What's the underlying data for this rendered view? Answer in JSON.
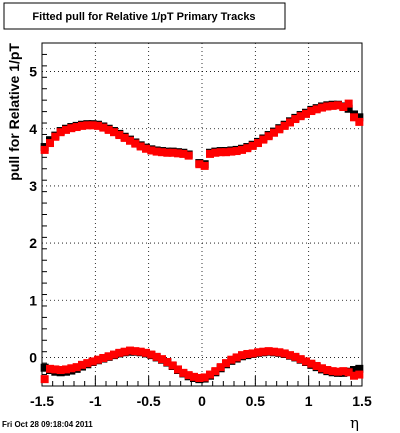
{
  "chart_data": {
    "type": "scatter",
    "title": "Fitted pull for Relative 1/pT  Primary Tracks",
    "xlabel": "η",
    "ylabel": "pull for Relative 1/pT",
    "xlim": [
      -1.5,
      1.5
    ],
    "ylim": [
      -0.5,
      5.5
    ],
    "x_tick_labels": [
      "-1.5",
      "-1",
      "-0.5",
      "0",
      "0.5",
      "1",
      "1.5"
    ],
    "x_ticks": [
      -1.5,
      -1,
      -0.5,
      0,
      0.5,
      1,
      1.5
    ],
    "y_tick_labels": [
      "0",
      "1",
      "2",
      "3",
      "4",
      "5"
    ],
    "y_ticks": [
      0,
      1,
      2,
      3,
      4,
      5
    ],
    "grid": true,
    "series": [
      {
        "color": "#000000",
        "marker": "square",
        "points": [
          [
            -1.475,
            3.68
          ],
          [
            -1.425,
            3.8
          ],
          [
            -1.375,
            3.88
          ],
          [
            -1.325,
            3.96
          ],
          [
            -1.275,
            4.0
          ],
          [
            -1.225,
            4.03
          ],
          [
            -1.175,
            4.05
          ],
          [
            -1.125,
            4.07
          ],
          [
            -1.075,
            4.08
          ],
          [
            -1.025,
            4.08
          ],
          [
            -0.975,
            4.07
          ],
          [
            -0.925,
            4.04
          ],
          [
            -0.875,
            4.0
          ],
          [
            -0.825,
            3.96
          ],
          [
            -0.775,
            3.91
          ],
          [
            -0.725,
            3.86
          ],
          [
            -0.675,
            3.81
          ],
          [
            -0.625,
            3.76
          ],
          [
            -0.575,
            3.71
          ],
          [
            -0.525,
            3.67
          ],
          [
            -0.475,
            3.64
          ],
          [
            -0.425,
            3.62
          ],
          [
            -0.375,
            3.61
          ],
          [
            -0.325,
            3.6
          ],
          [
            -0.275,
            3.6
          ],
          [
            -0.225,
            3.59
          ],
          [
            -0.175,
            3.58
          ],
          [
            -0.125,
            3.55
          ],
          [
            -0.025,
            3.4
          ],
          [
            0.025,
            3.38
          ],
          [
            0.075,
            3.58
          ],
          [
            0.125,
            3.6
          ],
          [
            0.175,
            3.61
          ],
          [
            0.225,
            3.61
          ],
          [
            0.275,
            3.62
          ],
          [
            0.325,
            3.63
          ],
          [
            0.375,
            3.65
          ],
          [
            0.425,
            3.68
          ],
          [
            0.475,
            3.72
          ],
          [
            0.525,
            3.77
          ],
          [
            0.575,
            3.83
          ],
          [
            0.625,
            3.89
          ],
          [
            0.675,
            3.95
          ],
          [
            0.725,
            4.01
          ],
          [
            0.775,
            4.07
          ],
          [
            0.825,
            4.13
          ],
          [
            0.875,
            4.19
          ],
          [
            0.925,
            4.24
          ],
          [
            0.975,
            4.28
          ],
          [
            1.025,
            4.33
          ],
          [
            1.075,
            4.36
          ],
          [
            1.125,
            4.39
          ],
          [
            1.175,
            4.41
          ],
          [
            1.225,
            4.42
          ],
          [
            1.275,
            4.42
          ],
          [
            1.325,
            4.39
          ],
          [
            1.375,
            4.35
          ],
          [
            1.425,
            4.25
          ],
          [
            1.475,
            4.2
          ],
          [
            -1.475,
            -0.18
          ],
          [
            -1.425,
            -0.22
          ],
          [
            -1.375,
            -0.25
          ],
          [
            -1.325,
            -0.26
          ],
          [
            -1.275,
            -0.25
          ],
          [
            -1.225,
            -0.23
          ],
          [
            -1.175,
            -0.2
          ],
          [
            -1.125,
            -0.16
          ],
          [
            -1.075,
            -0.12
          ],
          [
            -1.025,
            -0.08
          ],
          [
            -0.975,
            -0.05
          ],
          [
            -0.925,
            -0.02
          ],
          [
            -0.875,
            0.01
          ],
          [
            -0.825,
            0.04
          ],
          [
            -0.775,
            0.07
          ],
          [
            -0.725,
            0.09
          ],
          [
            -0.675,
            0.1
          ],
          [
            -0.625,
            0.1
          ],
          [
            -0.575,
            0.09
          ],
          [
            -0.525,
            0.07
          ],
          [
            -0.475,
            0.04
          ],
          [
            -0.425,
            0.0
          ],
          [
            -0.375,
            -0.04
          ],
          [
            -0.325,
            -0.09
          ],
          [
            -0.275,
            -0.15
          ],
          [
            -0.225,
            -0.22
          ],
          [
            -0.175,
            -0.28
          ],
          [
            -0.125,
            -0.33
          ],
          [
            -0.075,
            -0.36
          ],
          [
            -0.025,
            -0.38
          ],
          [
            0.025,
            -0.37
          ],
          [
            0.075,
            -0.32
          ],
          [
            0.125,
            -0.26
          ],
          [
            0.175,
            -0.19
          ],
          [
            0.225,
            -0.12
          ],
          [
            0.275,
            -0.06
          ],
          [
            0.325,
            -0.02
          ],
          [
            0.375,
            0.02
          ],
          [
            0.425,
            0.04
          ],
          [
            0.475,
            0.06
          ],
          [
            0.525,
            0.08
          ],
          [
            0.575,
            0.09
          ],
          [
            0.625,
            0.1
          ],
          [
            0.675,
            0.09
          ],
          [
            0.725,
            0.08
          ],
          [
            0.775,
            0.06
          ],
          [
            0.825,
            0.03
          ],
          [
            0.875,
            0.0
          ],
          [
            0.925,
            -0.04
          ],
          [
            0.975,
            -0.08
          ],
          [
            1.025,
            -0.13
          ],
          [
            1.075,
            -0.17
          ],
          [
            1.125,
            -0.21
          ],
          [
            1.175,
            -0.24
          ],
          [
            1.225,
            -0.26
          ],
          [
            1.275,
            -0.27
          ],
          [
            1.325,
            -0.27
          ],
          [
            1.375,
            -0.25
          ],
          [
            1.425,
            -0.22
          ],
          [
            1.475,
            -0.2
          ]
        ]
      },
      {
        "color": "#ff0000",
        "marker": "square",
        "points": [
          [
            -1.475,
            3.63
          ],
          [
            -1.425,
            3.75
          ],
          [
            -1.375,
            3.86
          ],
          [
            -1.325,
            3.94
          ],
          [
            -1.275,
            3.98
          ],
          [
            -1.225,
            4.01
          ],
          [
            -1.175,
            4.03
          ],
          [
            -1.125,
            4.05
          ],
          [
            -1.075,
            4.06
          ],
          [
            -1.025,
            4.06
          ],
          [
            -0.975,
            4.05
          ],
          [
            -0.925,
            4.02
          ],
          [
            -0.875,
            3.98
          ],
          [
            -0.825,
            3.94
          ],
          [
            -0.775,
            3.89
          ],
          [
            -0.725,
            3.84
          ],
          [
            -0.675,
            3.79
          ],
          [
            -0.625,
            3.74
          ],
          [
            -0.575,
            3.69
          ],
          [
            -0.525,
            3.65
          ],
          [
            -0.475,
            3.62
          ],
          [
            -0.425,
            3.6
          ],
          [
            -0.375,
            3.59
          ],
          [
            -0.325,
            3.58
          ],
          [
            -0.275,
            3.58
          ],
          [
            -0.225,
            3.57
          ],
          [
            -0.175,
            3.56
          ],
          [
            -0.125,
            3.53
          ],
          [
            -0.025,
            3.38
          ],
          [
            0.025,
            3.35
          ],
          [
            0.075,
            3.56
          ],
          [
            0.125,
            3.58
          ],
          [
            0.175,
            3.59
          ],
          [
            0.225,
            3.59
          ],
          [
            0.275,
            3.6
          ],
          [
            0.325,
            3.61
          ],
          [
            0.375,
            3.63
          ],
          [
            0.425,
            3.66
          ],
          [
            0.475,
            3.7
          ],
          [
            0.525,
            3.75
          ],
          [
            0.575,
            3.81
          ],
          [
            0.625,
            3.87
          ],
          [
            0.675,
            3.93
          ],
          [
            0.725,
            3.99
          ],
          [
            0.775,
            4.05
          ],
          [
            0.825,
            4.11
          ],
          [
            0.875,
            4.17
          ],
          [
            0.925,
            4.22
          ],
          [
            0.975,
            4.26
          ],
          [
            1.025,
            4.31
          ],
          [
            1.075,
            4.34
          ],
          [
            1.125,
            4.37
          ],
          [
            1.175,
            4.39
          ],
          [
            1.225,
            4.4
          ],
          [
            1.275,
            4.41
          ],
          [
            1.325,
            4.38
          ],
          [
            1.375,
            4.44
          ],
          [
            1.425,
            4.2
          ],
          [
            1.475,
            4.12
          ],
          [
            -1.475,
            -0.38
          ],
          [
            -1.425,
            -0.2
          ],
          [
            -1.375,
            -0.21
          ],
          [
            -1.325,
            -0.22
          ],
          [
            -1.275,
            -0.21
          ],
          [
            -1.225,
            -0.19
          ],
          [
            -1.175,
            -0.17
          ],
          [
            -1.125,
            -0.13
          ],
          [
            -1.075,
            -0.1
          ],
          [
            -1.025,
            -0.07
          ],
          [
            -0.975,
            -0.04
          ],
          [
            -0.925,
            -0.01
          ],
          [
            -0.875,
            0.02
          ],
          [
            -0.825,
            0.05
          ],
          [
            -0.775,
            0.08
          ],
          [
            -0.725,
            0.1
          ],
          [
            -0.675,
            0.12
          ],
          [
            -0.625,
            0.11
          ],
          [
            -0.575,
            0.1
          ],
          [
            -0.525,
            0.08
          ],
          [
            -0.475,
            0.05
          ],
          [
            -0.425,
            0.01
          ],
          [
            -0.375,
            -0.03
          ],
          [
            -0.325,
            -0.08
          ],
          [
            -0.275,
            -0.14
          ],
          [
            -0.225,
            -0.21
          ],
          [
            -0.175,
            -0.27
          ],
          [
            -0.125,
            -0.31
          ],
          [
            -0.075,
            -0.34
          ],
          [
            -0.025,
            -0.36
          ],
          [
            0.025,
            -0.35
          ],
          [
            0.075,
            -0.3
          ],
          [
            0.125,
            -0.24
          ],
          [
            0.175,
            -0.17
          ],
          [
            0.225,
            -0.1
          ],
          [
            0.275,
            -0.04
          ],
          [
            0.325,
            0.0
          ],
          [
            0.375,
            0.04
          ],
          [
            0.425,
            0.06
          ],
          [
            0.475,
            0.07
          ],
          [
            0.525,
            0.09
          ],
          [
            0.575,
            0.1
          ],
          [
            0.625,
            0.11
          ],
          [
            0.675,
            0.1
          ],
          [
            0.725,
            0.09
          ],
          [
            0.775,
            0.07
          ],
          [
            0.825,
            0.04
          ],
          [
            0.875,
            0.01
          ],
          [
            0.925,
            -0.03
          ],
          [
            0.975,
            -0.07
          ],
          [
            1.025,
            -0.11
          ],
          [
            1.075,
            -0.15
          ],
          [
            1.125,
            -0.19
          ],
          [
            1.175,
            -0.22
          ],
          [
            1.225,
            -0.24
          ],
          [
            1.275,
            -0.25
          ],
          [
            1.325,
            -0.24
          ],
          [
            1.375,
            -0.26
          ],
          [
            1.425,
            -0.32
          ],
          [
            1.475,
            -0.3
          ]
        ]
      }
    ]
  },
  "footer": {
    "timestamp": "Fri Oct 28 09:18:04 2011"
  }
}
